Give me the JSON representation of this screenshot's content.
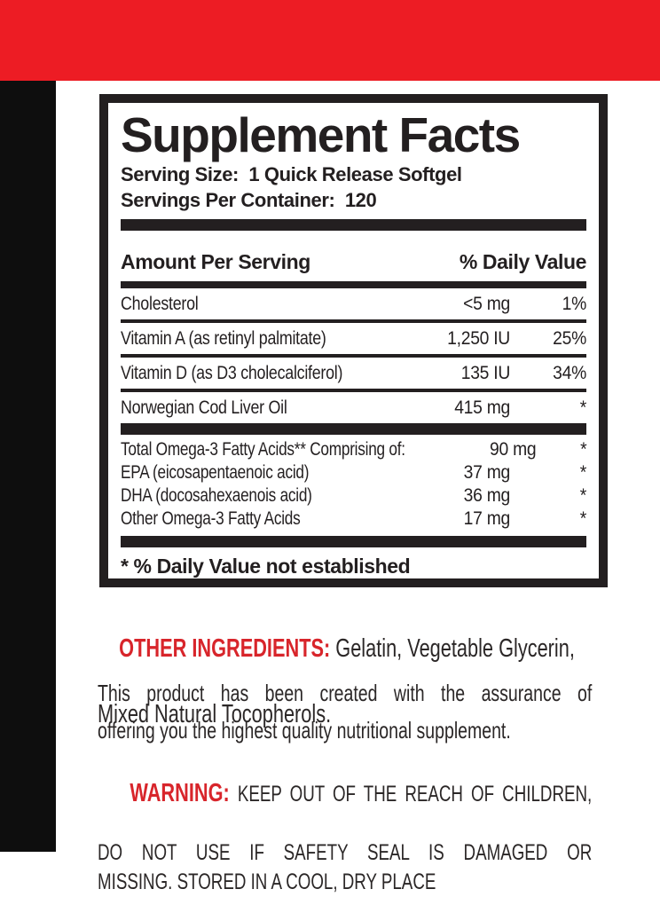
{
  "colors": {
    "band_red": "#ed1c24",
    "strip_black": "#0e0e0e",
    "ink_black": "#231f20",
    "accent_text_red": "#d8252b"
  },
  "panel": {
    "title": "Supplement Facts",
    "serving_size_line": "Serving Size:  1 Quick Release Softgel",
    "servings_per_container_line": "Servings Per Container:  120",
    "header": {
      "amount_label": "Amount Per Serving",
      "daily_value_label": "% Daily Value"
    },
    "rows": [
      {
        "name": "Cholesterol",
        "amount": "<5 mg",
        "dv": "1%"
      },
      {
        "name": "Vitamin A (as retinyl palmitate)",
        "amount": "1,250 IU",
        "dv": "25%"
      },
      {
        "name": "Vitamin D (as D3 cholecalciferol)",
        "amount": "135 IU",
        "dv": "34%"
      },
      {
        "name": "Norwegian Cod Liver Oil",
        "amount": "415 mg",
        "dv": "*"
      }
    ],
    "omega_rows": [
      {
        "name": "Total Omega-3 Fatty Acids** Comprising of:",
        "amount": "90 mg",
        "dv": "*"
      },
      {
        "name": "EPA (eicosapentaenoic acid)",
        "amount": "37 mg",
        "dv": "*"
      },
      {
        "name": "DHA (docosahexaenois acid)",
        "amount": "36 mg",
        "dv": "*"
      },
      {
        "name": "Other Omega-3 Fatty Acids",
        "amount": "17 mg",
        "dv": "*"
      }
    ],
    "footnote": "* % Daily Value not established"
  },
  "other_ingredients": {
    "label": "OTHER INGREDIENTS:",
    "line1_rest": " Gelatin, Vegetable Glycerin,",
    "line2": "Mixed Natural Tocopherols."
  },
  "assurance": {
    "line1": "This product has been created with the assurance of",
    "line2": "offering you the highest quality nutritional supplement."
  },
  "warning": {
    "label": "WARNING:",
    "line1_rest": " KEEP OUT OF THE REACH OF CHILDREN,",
    "line2": "DO NOT USE IF SAFETY SEAL IS DAMAGED OR",
    "line3": "MISSING. STORED IN A COOL, DRY PLACE"
  }
}
